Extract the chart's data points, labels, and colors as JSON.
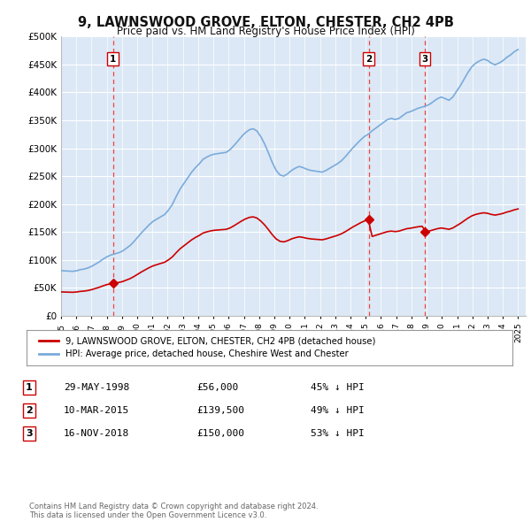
{
  "title": "9, LAWNSWOOD GROVE, ELTON, CHESTER, CH2 4PB",
  "subtitle": "Price paid vs. HM Land Registry's House Price Index (HPI)",
  "background_color": "#ffffff",
  "plot_bg_color": "#dce8f5",
  "ylim": [
    0,
    500000
  ],
  "yticks": [
    0,
    50000,
    100000,
    150000,
    200000,
    250000,
    300000,
    350000,
    400000,
    450000,
    500000
  ],
  "ytick_labels": [
    "£0",
    "£50K",
    "£100K",
    "£150K",
    "£200K",
    "£250K",
    "£300K",
    "£350K",
    "£400K",
    "£450K",
    "£500K"
  ],
  "xlim_start": 1995.0,
  "xlim_end": 2025.5,
  "xtick_years": [
    1995,
    1996,
    1997,
    1998,
    1999,
    2000,
    2001,
    2002,
    2003,
    2004,
    2005,
    2006,
    2007,
    2008,
    2009,
    2010,
    2011,
    2012,
    2013,
    2014,
    2015,
    2016,
    2017,
    2018,
    2019,
    2020,
    2021,
    2022,
    2023,
    2024,
    2025
  ],
  "sale_color": "#cc0000",
  "hpi_color": "#7aabdc",
  "vline_color": "#ee4444",
  "transactions": [
    {
      "label": "1",
      "date_num": 1998.41,
      "price": 56000
    },
    {
      "label": "2",
      "date_num": 2015.19,
      "price": 139500
    },
    {
      "label": "3",
      "date_num": 2018.88,
      "price": 150000
    }
  ],
  "legend_sale_label": "9, LAWNSWOOD GROVE, ELTON, CHESTER, CH2 4PB (detached house)",
  "legend_hpi_label": "HPI: Average price, detached house, Cheshire West and Chester",
  "footer": "Contains HM Land Registry data © Crown copyright and database right 2024.\nThis data is licensed under the Open Government Licence v3.0.",
  "table_rows": [
    {
      "num": "1",
      "date": "29-MAY-1998",
      "price": "£56,000",
      "hpi": "45% ↓ HPI"
    },
    {
      "num": "2",
      "date": "10-MAR-2015",
      "price": "£139,500",
      "hpi": "49% ↓ HPI"
    },
    {
      "num": "3",
      "date": "16-NOV-2018",
      "price": "£150,000",
      "hpi": "53% ↓ HPI"
    }
  ],
  "hpi_index": [
    100.0,
    99.2,
    98.8,
    98.3,
    99.5,
    102.0,
    103.3,
    105.8,
    109.5,
    114.5,
    119.5,
    125.7,
    130.7,
    134.5,
    136.9,
    139.4,
    143.1,
    149.3,
    155.6,
    164.3,
    174.2,
    184.1,
    192.9,
    201.7,
    209.1,
    214.1,
    219.1,
    224.1,
    234.1,
    246.6,
    264.1,
    280.3,
    292.7,
    305.1,
    317.5,
    327.5,
    336.1,
    346.1,
    351.1,
    355.1,
    357.6,
    358.8,
    360.1,
    361.4,
    367.2,
    376.1,
    386.1,
    396.1,
    404.8,
    411.1,
    413.6,
    408.6,
    396.1,
    379.9,
    360.1,
    338.9,
    321.4,
    311.4,
    308.9,
    313.9,
    321.4,
    326.4,
    330.1,
    327.6,
    323.9,
    321.4,
    320.1,
    318.9,
    317.6,
    321.4,
    326.4,
    331.4,
    336.4,
    342.7,
    351.4,
    361.4,
    371.4,
    380.1,
    388.9,
    396.4,
    401.4,
    408.9,
    415.2,
    421.4,
    427.7,
    433.9,
    436.4,
    433.9,
    436.4,
    442.7,
    448.9,
    451.4,
    455.2,
    458.9,
    461.4,
    463.9,
    467.7,
    473.9,
    479.9,
    483.6,
    480.2,
    476.4,
    483.6,
    496.4,
    509.1,
    523.9,
    538.6,
    550.9,
    558.6,
    563.6,
    567.3,
    564.8,
    558.6,
    554.8,
    558.6,
    563.6,
    570.9,
    576.4,
    583.6,
    588.6
  ],
  "sale1_hpi_at_sale": 130.7,
  "sale1_price": 56000,
  "sale2_hpi_at_sale": 401.4,
  "sale2_price": 139500,
  "sale3_hpi_at_sale": 461.4,
  "sale3_price": 150000
}
